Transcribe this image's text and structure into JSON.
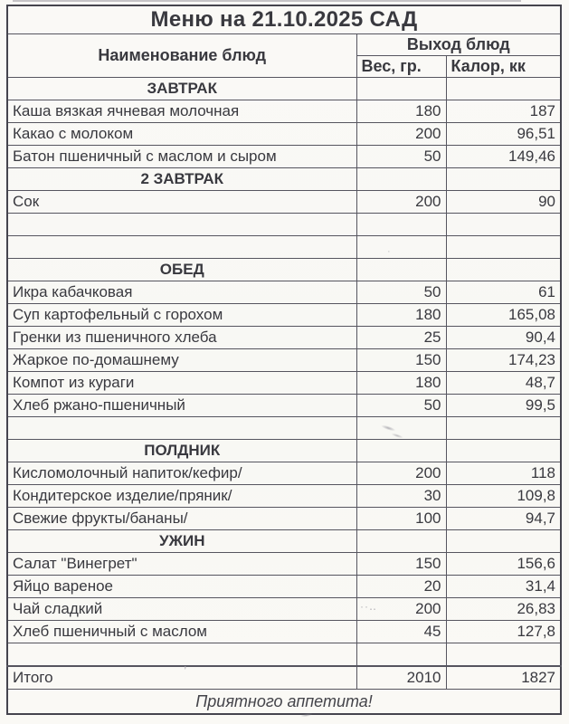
{
  "page": {
    "title": "Меню на 21.10.2025 САД",
    "footer": "Приятного аппетита!"
  },
  "table": {
    "columns": {
      "name": "Наименование блюд",
      "output_group": "Выход блюд",
      "weight": "Вес, гр.",
      "calories": "Калор, кк"
    },
    "rows": [
      {
        "type": "section",
        "name": "ЗАВТРАК",
        "weight": "",
        "calories": ""
      },
      {
        "type": "item",
        "name": "Каша вязкая ячневая молочная",
        "weight": "180",
        "calories": "187"
      },
      {
        "type": "item",
        "name": "Какао с молоком",
        "weight": "200",
        "calories": "96,51"
      },
      {
        "type": "item",
        "name": "Батон пшеничный с маслом и сыром",
        "weight": "50",
        "calories": "149,46"
      },
      {
        "type": "section",
        "name": "2 ЗАВТРАК",
        "weight": "",
        "calories": ""
      },
      {
        "type": "item",
        "name": "Сок",
        "weight": "200",
        "calories": "90"
      },
      {
        "type": "empty",
        "name": "",
        "weight": "",
        "calories": ""
      },
      {
        "type": "empty",
        "name": "",
        "weight": "",
        "calories": ""
      },
      {
        "type": "section",
        "name": "ОБЕД",
        "weight": "",
        "calories": ""
      },
      {
        "type": "item",
        "name": "Икра кабачковая",
        "weight": "50",
        "calories": "61"
      },
      {
        "type": "item",
        "name": "Суп картофельный с горохом",
        "weight": "180",
        "calories": "165,08"
      },
      {
        "type": "item",
        "name": "Гренки из пшеничного хлеба",
        "weight": "25",
        "calories": "90,4"
      },
      {
        "type": "item",
        "name": "Жаркое по-домашнему",
        "weight": "150",
        "calories": "174,23"
      },
      {
        "type": "item",
        "name": "Компот из кураги",
        "weight": "180",
        "calories": "48,7"
      },
      {
        "type": "item",
        "name": "Хлеб ржано-пшеничный",
        "weight": "50",
        "calories": "99,5"
      },
      {
        "type": "empty",
        "name": "",
        "weight": "",
        "calories": ""
      },
      {
        "type": "section",
        "name": "ПОЛДНИК",
        "weight": "",
        "calories": ""
      },
      {
        "type": "item",
        "name": "Кисломолочный напиток/кефир/",
        "weight": "200",
        "calories": "118"
      },
      {
        "type": "item",
        "name": "Кондитерское изделие/пряник/",
        "weight": "30",
        "calories": "109,8"
      },
      {
        "type": "item",
        "name": "Свежие фрукты/бананы/",
        "weight": "100",
        "calories": "94,7"
      },
      {
        "type": "section",
        "name": "УЖИН",
        "weight": "",
        "calories": ""
      },
      {
        "type": "item",
        "name": "Салат \"Винегрет\"",
        "weight": "150",
        "calories": "156,6"
      },
      {
        "type": "item",
        "name": "Яйцо вареное",
        "weight": "20",
        "calories": "31,4"
      },
      {
        "type": "item",
        "name": "Чай сладкий",
        "weight": "200",
        "calories": "26,83"
      },
      {
        "type": "item",
        "name": "Хлеб пшеничный с маслом",
        "weight": "45",
        "calories": "127,8"
      },
      {
        "type": "empty",
        "name": "",
        "weight": "",
        "calories": ""
      },
      {
        "type": "total",
        "name": "Итого",
        "weight": "2010",
        "calories": "1827"
      }
    ]
  },
  "colors": {
    "paper": "#f9f8f5",
    "text": "#39393f",
    "border": "#56555f",
    "outer_border": "#45444e"
  },
  "artifacts": {
    "apostrophe": "’",
    "dots": "··‥",
    "speck": "·"
  }
}
